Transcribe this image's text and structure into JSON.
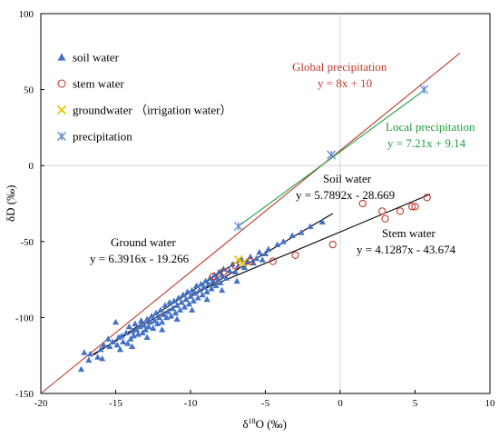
{
  "chart_data": {
    "type": "scatter",
    "xlabel": "δ18O (‰)",
    "xlabel_parts": {
      "prefix": "δ",
      "sup": "18",
      "suffix": "O (‰)"
    },
    "ylabel": "δD (‰)",
    "xlim": [
      -20,
      10
    ],
    "ylim": [
      -150,
      100
    ],
    "xticks": [
      -20,
      -15,
      -10,
      -5,
      0,
      5,
      10
    ],
    "yticks": [
      -150,
      -100,
      -50,
      0,
      50,
      100
    ],
    "grid": false,
    "legend_position": "top-left",
    "legend": [
      {
        "id": "soil",
        "label": "soil water",
        "marker": "triangle",
        "color": "#4472c4"
      },
      {
        "id": "stem",
        "label": "stem water",
        "marker": "circle",
        "color": "#c0392b"
      },
      {
        "id": "ground",
        "label": "groundwater （irrigation water）",
        "marker": "x",
        "color": "#e6c200"
      },
      {
        "id": "precip",
        "label": "precipitation",
        "marker": "star",
        "color": "#5b8bd0"
      }
    ],
    "series": [
      {
        "name": "soil water",
        "marker": "triangle",
        "color": "#4472c4",
        "points": [
          [
            -17.3,
            -134
          ],
          [
            -17.1,
            -123
          ],
          [
            -16.8,
            -128
          ],
          [
            -16.7,
            -124
          ],
          [
            -16.2,
            -126
          ],
          [
            -16.0,
            -121
          ],
          [
            -15.8,
            -118
          ],
          [
            -15.5,
            -114
          ],
          [
            -15.4,
            -119
          ],
          [
            -15.2,
            -116
          ],
          [
            -15.0,
            -103
          ],
          [
            -14.9,
            -118
          ],
          [
            -14.8,
            -113
          ],
          [
            -14.6,
            -112
          ],
          [
            -14.5,
            -116
          ],
          [
            -14.3,
            -110
          ],
          [
            -14.2,
            -117
          ],
          [
            -14.1,
            -106
          ],
          [
            -14.0,
            -114
          ],
          [
            -13.9,
            -109
          ],
          [
            -13.8,
            -112
          ],
          [
            -13.7,
            -104
          ],
          [
            -13.6,
            -108
          ],
          [
            -13.5,
            -111
          ],
          [
            -13.4,
            -106
          ],
          [
            -13.3,
            -102
          ],
          [
            -13.2,
            -110
          ],
          [
            -13.1,
            -105
          ],
          [
            -13.0,
            -108
          ],
          [
            -12.9,
            -101
          ],
          [
            -12.8,
            -106
          ],
          [
            -12.7,
            -103
          ],
          [
            -12.6,
            -99
          ],
          [
            -12.5,
            -107
          ],
          [
            -12.4,
            -102
          ],
          [
            -12.3,
            -97
          ],
          [
            -12.2,
            -104
          ],
          [
            -12.1,
            -100
          ],
          [
            -12.0,
            -95
          ],
          [
            -11.9,
            -103
          ],
          [
            -11.8,
            -98
          ],
          [
            -11.7,
            -92
          ],
          [
            -11.6,
            -100
          ],
          [
            -11.5,
            -96
          ],
          [
            -11.4,
            -90
          ],
          [
            -11.3,
            -99
          ],
          [
            -11.2,
            -94
          ],
          [
            -11.1,
            -89
          ],
          [
            -11.0,
            -97
          ],
          [
            -10.9,
            -92
          ],
          [
            -10.8,
            -87
          ],
          [
            -10.7,
            -95
          ],
          [
            -10.6,
            -90
          ],
          [
            -10.5,
            -85
          ],
          [
            -10.4,
            -93
          ],
          [
            -10.3,
            -88
          ],
          [
            -10.2,
            -83
          ],
          [
            -10.1,
            -91
          ],
          [
            -10.0,
            -86
          ],
          [
            -9.9,
            -82
          ],
          [
            -9.8,
            -89
          ],
          [
            -9.7,
            -84
          ],
          [
            -9.6,
            -79
          ],
          [
            -9.5,
            -87
          ],
          [
            -9.4,
            -82
          ],
          [
            -9.3,
            -78
          ],
          [
            -9.2,
            -85
          ],
          [
            -9.1,
            -80
          ],
          [
            -9.0,
            -76
          ],
          [
            -8.9,
            -83
          ],
          [
            -8.8,
            -78
          ],
          [
            -8.7,
            -74
          ],
          [
            -8.6,
            -81
          ],
          [
            -8.5,
            -76
          ],
          [
            -8.4,
            -72
          ],
          [
            -8.3,
            -79
          ],
          [
            -8.2,
            -74
          ],
          [
            -8.1,
            -70
          ],
          [
            -8.0,
            -77
          ],
          [
            -7.9,
            -72
          ],
          [
            -7.8,
            -68
          ],
          [
            -7.6,
            -74
          ],
          [
            -7.4,
            -69
          ],
          [
            -7.2,
            -65
          ],
          [
            -7.0,
            -70
          ],
          [
            -6.8,
            -66
          ],
          [
            -6.6,
            -62
          ],
          [
            -6.4,
            -67
          ],
          [
            -6.2,
            -63
          ],
          [
            -6.0,
            -60
          ],
          [
            -5.8,
            -64
          ],
          [
            -5.6,
            -61
          ],
          [
            -5.4,
            -57
          ],
          [
            -5.2,
            -62
          ],
          [
            -5.0,
            -58
          ],
          [
            -4.8,
            -55
          ],
          [
            -4.2,
            -52
          ],
          [
            -3.8,
            -50
          ],
          [
            -3.2,
            -46
          ],
          [
            -2.6,
            -44
          ],
          [
            -2.0,
            -40
          ],
          [
            -1.2,
            -37
          ],
          [
            -14.7,
            -121
          ],
          [
            -13.9,
            -119
          ],
          [
            -12.9,
            -113
          ],
          [
            -11.9,
            -108
          ],
          [
            -10.9,
            -101
          ],
          [
            -9.9,
            -95
          ],
          [
            -8.9,
            -88
          ],
          [
            -7.9,
            -82
          ],
          [
            -6.9,
            -76
          ],
          [
            -15.9,
            -127
          ]
        ]
      },
      {
        "name": "stem water",
        "marker": "circle",
        "color": "#c0392b",
        "points": [
          [
            -8.5,
            -73
          ],
          [
            -7.8,
            -70
          ],
          [
            -7.0,
            -66
          ],
          [
            -6.0,
            -63
          ],
          [
            -4.5,
            -63
          ],
          [
            -3.0,
            -59
          ],
          [
            -0.5,
            -52
          ],
          [
            1.5,
            -25
          ],
          [
            2.8,
            -30
          ],
          [
            3.0,
            -35
          ],
          [
            4.0,
            -30
          ],
          [
            4.8,
            -27
          ],
          [
            5.0,
            -27
          ],
          [
            5.8,
            -21
          ]
        ]
      },
      {
        "name": "groundwater （irrigation water）",
        "marker": "x",
        "color": "#e6c200",
        "points": [
          [
            -6.8,
            -62
          ],
          [
            -6.5,
            -64
          ]
        ]
      },
      {
        "name": "precipitation",
        "marker": "star",
        "color": "#5b8bd0",
        "points": [
          [
            -6.8,
            -40
          ],
          [
            -0.6,
            7
          ],
          [
            5.6,
            50
          ]
        ]
      }
    ],
    "lines": [
      {
        "id": "gmwl",
        "color": "#c0392b",
        "slope": 8,
        "intercept": 10,
        "x": [
          -20,
          8
        ]
      },
      {
        "id": "lmwl",
        "color": "#1e9e3a",
        "slope": 7.21,
        "intercept": 9.14,
        "x": [
          -6.8,
          5.6
        ]
      },
      {
        "id": "ground",
        "color": "#000000",
        "slope": 6.3916,
        "intercept": -19.266,
        "x": [
          -16.5,
          -6.5
        ]
      },
      {
        "id": "soil",
        "color": "#000000",
        "slope": 5.7892,
        "intercept": -28.669,
        "x": [
          -16.5,
          -0.5
        ]
      },
      {
        "id": "stem",
        "color": "#000000",
        "slope": 4.1287,
        "intercept": -43.674,
        "x": [
          -10,
          6
        ]
      }
    ],
    "annotations": [
      {
        "id": "global_title",
        "text": "Global precipitation",
        "color": "red"
      },
      {
        "id": "global_eq",
        "text": "y = 8x + 10",
        "color": "red"
      },
      {
        "id": "local_title",
        "text": "Local precipitation",
        "color": "green"
      },
      {
        "id": "local_eq",
        "text": "y = 7.21x + 9.14",
        "color": "green"
      },
      {
        "id": "soil_title",
        "text": "Soil water",
        "color": "black"
      },
      {
        "id": "soil_eq",
        "text": "y = 5.7892x - 28.669",
        "color": "black"
      },
      {
        "id": "ground_title",
        "text": "Ground water",
        "color": "black"
      },
      {
        "id": "ground_eq",
        "text": "y = 6.3916x - 19.266",
        "color": "black"
      },
      {
        "id": "stem_title",
        "text": "Stem water",
        "color": "black"
      },
      {
        "id": "stem_eq",
        "text": "y = 4.1287x - 43.674",
        "color": "black"
      }
    ]
  }
}
